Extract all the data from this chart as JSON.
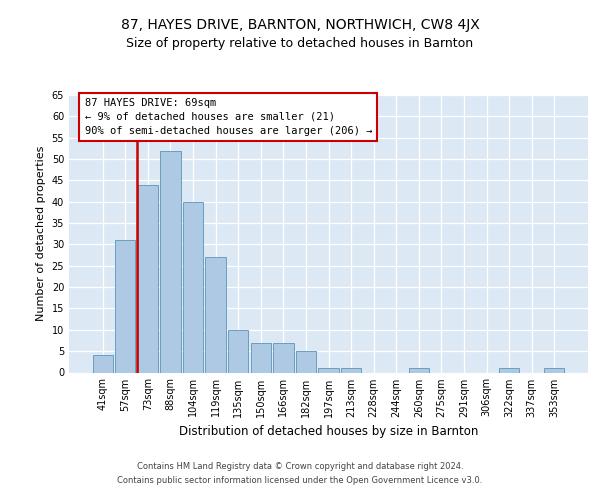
{
  "title": "87, HAYES DRIVE, BARNTON, NORTHWICH, CW8 4JX",
  "subtitle": "Size of property relative to detached houses in Barnton",
  "xlabel": "Distribution of detached houses by size in Barnton",
  "ylabel": "Number of detached properties",
  "categories": [
    "41sqm",
    "57sqm",
    "73sqm",
    "88sqm",
    "104sqm",
    "119sqm",
    "135sqm",
    "150sqm",
    "166sqm",
    "182sqm",
    "197sqm",
    "213sqm",
    "228sqm",
    "244sqm",
    "260sqm",
    "275sqm",
    "291sqm",
    "306sqm",
    "322sqm",
    "337sqm",
    "353sqm"
  ],
  "values": [
    4,
    31,
    44,
    52,
    40,
    27,
    10,
    7,
    7,
    5,
    1,
    1,
    0,
    0,
    1,
    0,
    0,
    0,
    1,
    0,
    1
  ],
  "bar_color": "#aec9e4",
  "bar_edge_color": "#6a9fc0",
  "highlight_label": "87 HAYES DRIVE: 69sqm",
  "highlight_line1": "← 9% of detached houses are smaller (21)",
  "highlight_line2": "90% of semi-detached houses are larger (206) →",
  "red_line_color": "#cc0000",
  "box_edge_color": "#cc0000",
  "ylim": [
    0,
    65
  ],
  "yticks": [
    0,
    5,
    10,
    15,
    20,
    25,
    30,
    35,
    40,
    45,
    50,
    55,
    60,
    65
  ],
  "background_color": "#dce9f5",
  "footer1": "Contains HM Land Registry data © Crown copyright and database right 2024.",
  "footer2": "Contains public sector information licensed under the Open Government Licence v3.0.",
  "title_fontsize": 10,
  "subtitle_fontsize": 9,
  "ylabel_fontsize": 8,
  "xlabel_fontsize": 8.5,
  "tick_fontsize": 7,
  "annot_fontsize": 7.5,
  "footer_fontsize": 6
}
